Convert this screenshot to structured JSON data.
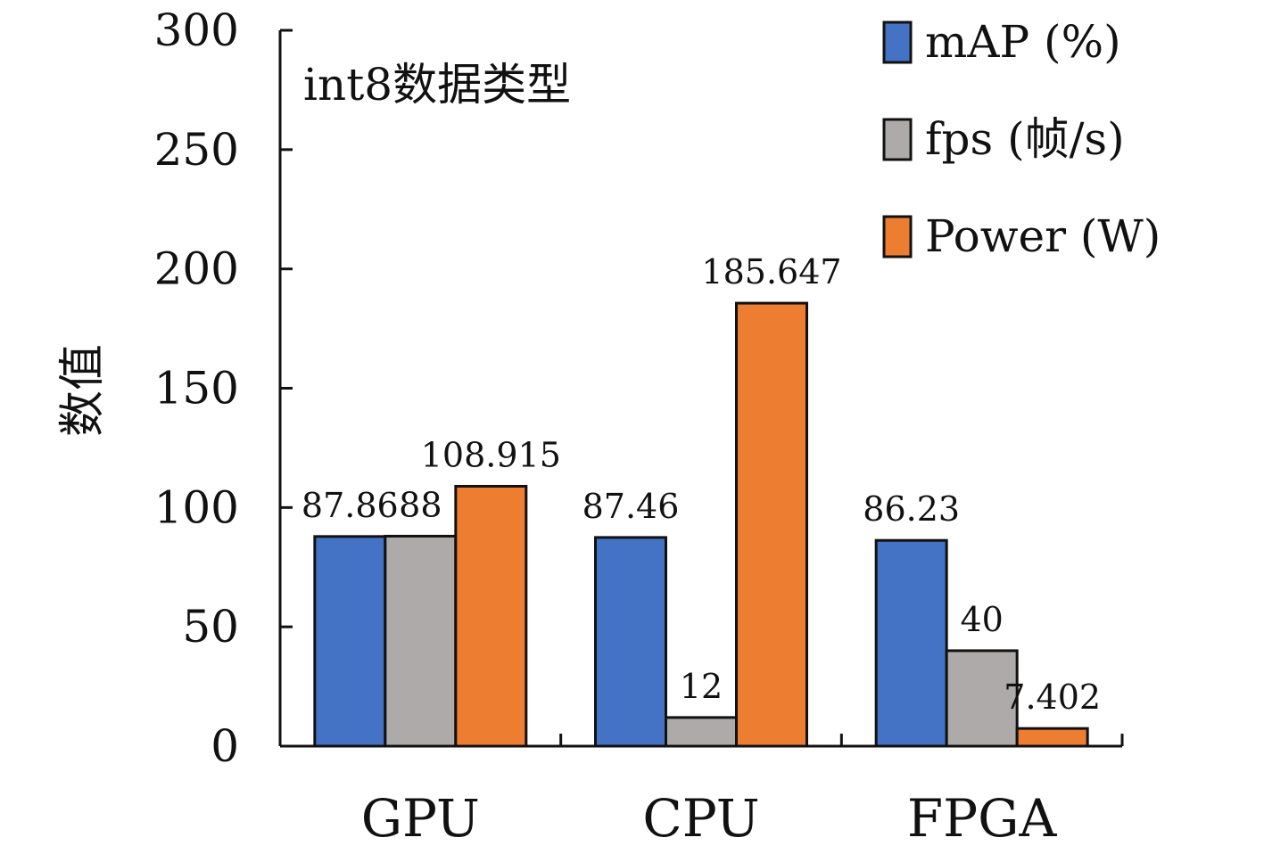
{
  "chart_data": {
    "type": "bar",
    "title": "",
    "annotation": "int8数据类型",
    "xlabel": "",
    "ylabel": "数值",
    "ylim": [
      0,
      300
    ],
    "yticks": [
      0,
      50,
      100,
      150,
      200,
      250,
      300
    ],
    "categories": [
      "GPU",
      "CPU",
      "FPGA"
    ],
    "series": [
      {
        "name": "mAP (%)",
        "color": "#4472C4",
        "values": [
          87.86,
          87.46,
          86.23
        ],
        "labels": [
          "87.86",
          "87.46",
          "86.23"
        ]
      },
      {
        "name": "fps (帧/s)",
        "color": "#AEAAAA",
        "values": [
          88,
          12,
          40
        ],
        "labels": [
          "88",
          "12",
          "40"
        ]
      },
      {
        "name": "Power (W)",
        "color": "#ED7D31",
        "values": [
          108.915,
          185.647,
          7.402
        ],
        "labels": [
          "108.915",
          "185.647",
          "7.402"
        ]
      }
    ],
    "legend_position": "top-right",
    "grid": false
  }
}
